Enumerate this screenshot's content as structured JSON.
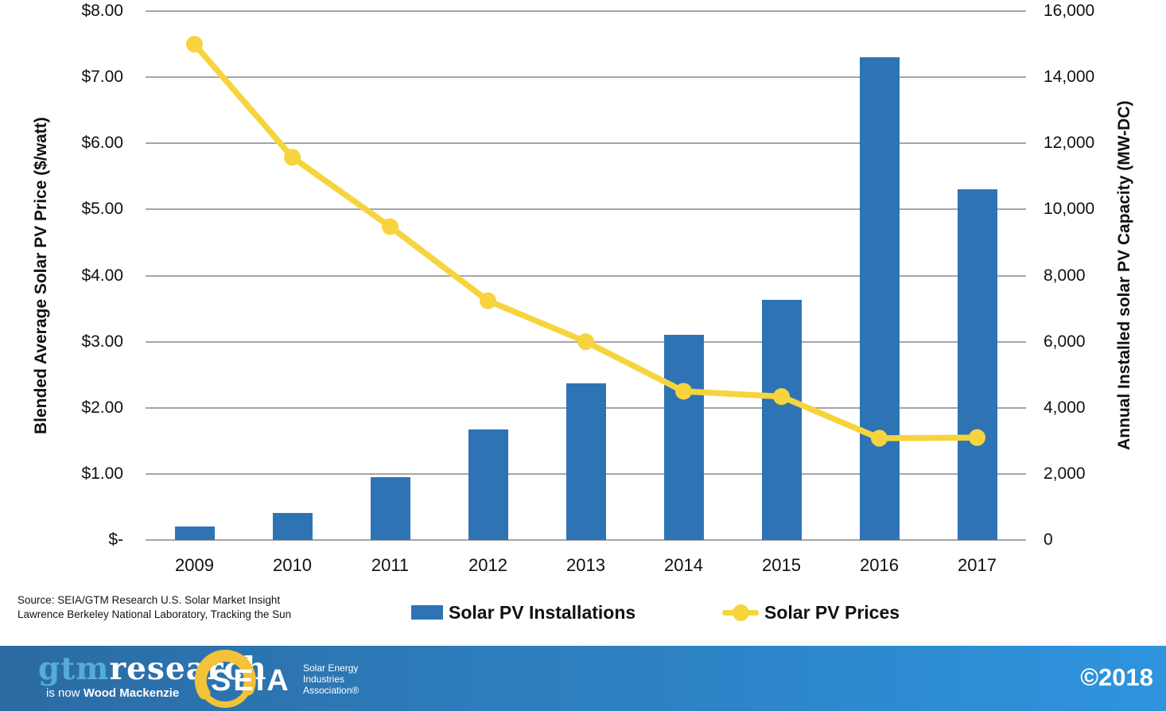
{
  "chart_data": {
    "type": "combo-bar-line",
    "categories": [
      "2009",
      "2010",
      "2011",
      "2012",
      "2013",
      "2014",
      "2015",
      "2016",
      "2017"
    ],
    "series": [
      {
        "name": "Solar PV Installations",
        "type": "bar",
        "axis": "right",
        "color": "#2E74B5",
        "values": [
          400,
          830,
          1900,
          3350,
          4750,
          6200,
          7260,
          14600,
          10600
        ]
      },
      {
        "name": "Solar PV Prices",
        "type": "line",
        "axis": "left",
        "color": "#F7D43E",
        "values": [
          7.5,
          5.79,
          4.74,
          3.62,
          3.0,
          2.25,
          2.17,
          1.54,
          1.55
        ]
      }
    ],
    "left_axis": {
      "label": "Blended Average Solar PV Price ($/watt)",
      "ticks": [
        "$8.00",
        "$7.00",
        "$6.00",
        "$5.00",
        "$4.00",
        "$3.00",
        "$2.00",
        "$1.00",
        "$-"
      ],
      "range": [
        0,
        8
      ]
    },
    "right_axis": {
      "label": "Annual Installed solar PV Capacity (MW-DC)",
      "ticks": [
        "16,000",
        "14,000",
        "12,000",
        "10,000",
        "8,000",
        "6,000",
        "4,000",
        "2,000",
        "0"
      ],
      "range": [
        0,
        16000
      ]
    },
    "grid": true,
    "gridline_color": "#A6A6A6",
    "legend_position": "bottom"
  },
  "legend": {
    "installations_label": "Solar PV Installations",
    "prices_label": "Solar PV Prices"
  },
  "source": {
    "line1": "Source: SEIA/GTM Research U.S. Solar Market Insight",
    "line2": "Lawrence Berkeley National Laboratory, Tracking the Sun"
  },
  "footer": {
    "gtm_word1": "gtm",
    "gtm_word2": "research",
    "tagline_prefix": "is now ",
    "tagline_bold": "Wood Mackenzie",
    "seia_acronym": "SEIA",
    "seia_org_line1": "Solar Energy",
    "seia_org_line2": "Industries",
    "seia_org_line3": "Association®",
    "copyright": "©2018"
  },
  "colors": {
    "bar": "#2E74B5",
    "line": "#F7D43E",
    "grid": "#A6A6A6",
    "footer_gradient_left": "#2C6BA3",
    "footer_gradient_right": "#2E94DE",
    "gtm_accent": "#55ACD8",
    "seia_gold": "#F2C238"
  }
}
